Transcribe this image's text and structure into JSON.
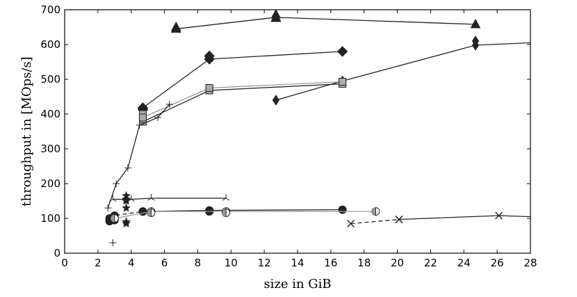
{
  "chart_data": {
    "type": "line",
    "title": "",
    "xlabel": "size in GiB",
    "ylabel": "throughput in [MOps/s]",
    "xlim": [
      0,
      28
    ],
    "ylim": [
      0,
      700
    ],
    "xticks": [
      0,
      2,
      4,
      6,
      8,
      10,
      12,
      14,
      16,
      18,
      20,
      22,
      24,
      26,
      28
    ],
    "yticks": [
      0,
      100,
      200,
      300,
      400,
      500,
      600,
      700
    ],
    "grid": false,
    "legend": "none",
    "series": [
      {
        "marker": "triangle",
        "line": "solid",
        "color": "#222222",
        "fill": "#222222",
        "x": [
          6.7,
          12.7,
          24.7
        ],
        "y": [
          645,
          678,
          658
        ],
        "extra_points": [
          [
            6.7,
            650
          ],
          [
            12.7,
            686
          ],
          [
            12.7,
            676
          ]
        ]
      },
      {
        "marker": "diamond",
        "line": "solid",
        "color": "#222222",
        "fill": "#222222",
        "x": [
          4.7,
          8.7,
          16.7
        ],
        "y": [
          418,
          558,
          580
        ],
        "extra_points": [
          [
            8.7,
            567
          ],
          [
            4.7,
            413
          ]
        ]
      },
      {
        "marker": "thin-diamond",
        "line": "solid",
        "color": "#222222",
        "fill": "#222222",
        "x": [
          12.7,
          16.7,
          24.7,
          28
        ],
        "y": [
          440,
          495,
          598,
          605
        ],
        "extra_points": [
          [
            24.7,
            610
          ]
        ]
      },
      {
        "marker": "square",
        "line": "solid",
        "color": "#222222",
        "fill": "#aaaaaa",
        "x": [
          4.7,
          8.7,
          16.7
        ],
        "y": [
          378,
          468,
          487
        ],
        "extra_points": [
          [
            4.7,
            385
          ],
          [
            4.7,
            393
          ],
          [
            4.7,
            400
          ],
          [
            8.7,
            475
          ],
          [
            16.7,
            493
          ]
        ]
      },
      {
        "marker": "square",
        "line": "solid",
        "color": "#999999",
        "fill": "#aaaaaa",
        "x": [
          4.7,
          8.7,
          16.7
        ],
        "y": [
          390,
          475,
          493
        ]
      },
      {
        "marker": "plus",
        "line": "solid",
        "color": "#222222",
        "fill": "none",
        "x": [
          2.6,
          3.1,
          3.8,
          4.5,
          5.6,
          6.3
        ],
        "y": [
          130,
          200,
          245,
          368,
          390,
          428
        ]
      },
      {
        "marker": "plus",
        "line": "solid",
        "color": "#222222",
        "fill": "none",
        "x": [
          2.9
        ],
        "y": [
          30
        ]
      },
      {
        "marker": "tri",
        "line": "solid",
        "color": "#222222",
        "fill": "none",
        "x": [
          2.9,
          4.0,
          5.2,
          9.7
        ],
        "y": [
          155,
          155,
          158,
          158
        ]
      },
      {
        "marker": "star",
        "line": "none",
        "color": "#222222",
        "fill": "#222222",
        "x": [
          3.7,
          3.7,
          3.7,
          3.7,
          3.7,
          3.7
        ],
        "y": [
          165,
          155,
          130,
          90,
          85,
          150
        ]
      },
      {
        "marker": "circle",
        "line": "solid",
        "color": "#222222",
        "fill": "#222222",
        "x": [
          4.7,
          8.7,
          16.7
        ],
        "y": [
          120,
          123,
          125
        ],
        "extra_points": [
          [
            8.7,
            120
          ]
        ]
      },
      {
        "marker": "circle",
        "line": "dashed",
        "color": "#222222",
        "fill": "#222222",
        "x": [
          2.7,
          3.0,
          4.7
        ],
        "y": [
          100,
          108,
          120
        ],
        "extra_points": [
          [
            2.7,
            92
          ],
          [
            3.0,
            95
          ]
        ]
      },
      {
        "marker": "half-circle",
        "line": "solid",
        "color": "#999999",
        "fill": "#aaaaaa",
        "x": [
          3.0,
          5.2,
          9.7,
          18.7
        ],
        "y": [
          100,
          120,
          120,
          120
        ],
        "extra_points": [
          [
            5.2,
            116
          ],
          [
            9.7,
            116
          ]
        ]
      },
      {
        "marker": "x",
        "line": "dashed",
        "color": "#222222",
        "fill": "none",
        "x": [
          17.2,
          20.1
        ],
        "y": [
          85,
          97
        ]
      },
      {
        "marker": "x",
        "line": "solid",
        "color": "#222222",
        "fill": "none",
        "x": [
          20.1,
          26.1,
          28
        ],
        "y": [
          97,
          108,
          105
        ]
      }
    ]
  }
}
